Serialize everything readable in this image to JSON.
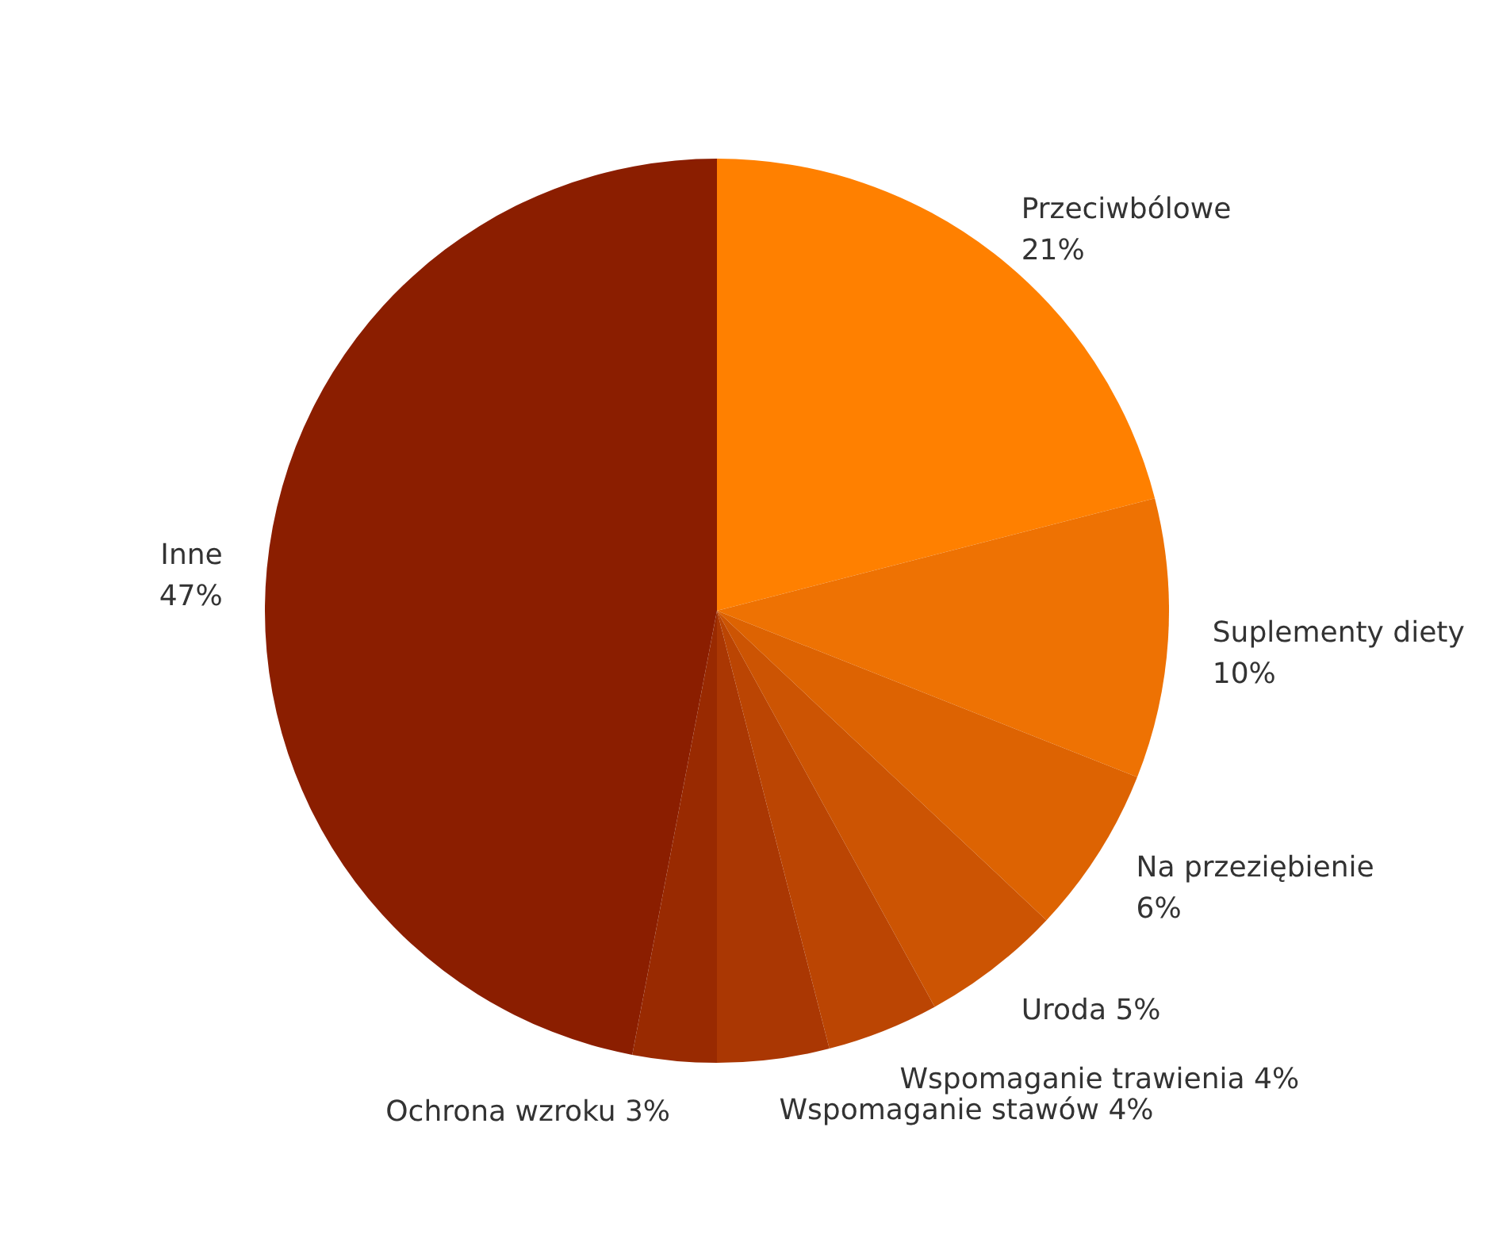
{
  "chart_data": {
    "type": "pie",
    "categories": [
      "Przeciwbólowe",
      "Suplementy diety",
      "Na przeziębienie",
      "Uroda",
      "Wspomaganie trawienia",
      "Wspomaganie stawów",
      "Ochrona wzroku",
      "Inne"
    ],
    "values": [
      21,
      10,
      6,
      5,
      4,
      4,
      3,
      47
    ],
    "colors": [
      "#ff8000",
      "#ee7203",
      "#dd6302",
      "#cc5403",
      "#bb4503",
      "#aa3703",
      "#992a01",
      "#8b1e00"
    ],
    "value_labels": [
      "21%",
      "10%",
      "6%",
      "5%",
      "4%",
      "4%",
      "3%",
      "47%"
    ]
  }
}
